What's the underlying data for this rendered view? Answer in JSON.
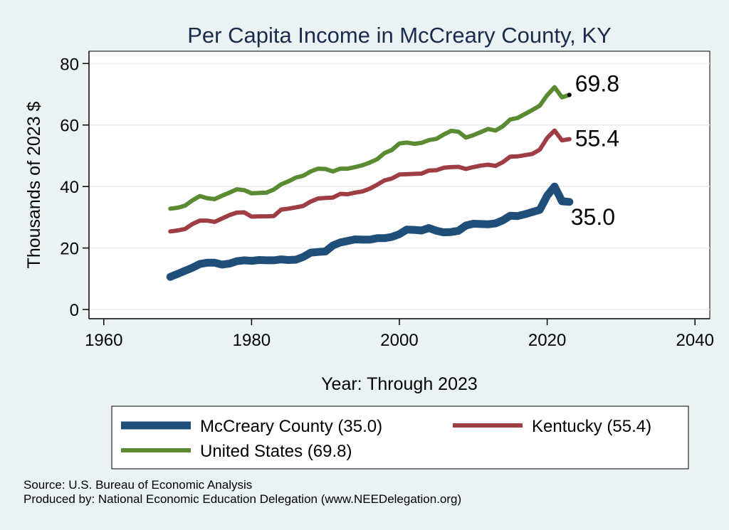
{
  "chart_data": {
    "type": "line",
    "title": "Per Capita Income in McCreary County, KY",
    "xlabel": "Year: Through 2023",
    "ylabel": "Thousands of 2023 $",
    "xlim": [
      1958,
      2042
    ],
    "ylim": [
      -3,
      84
    ],
    "xticks": [
      1960,
      1980,
      2000,
      2020,
      2040
    ],
    "yticks": [
      0,
      20,
      40,
      60,
      80
    ],
    "x": [
      1969,
      1970,
      1971,
      1972,
      1973,
      1974,
      1975,
      1976,
      1977,
      1978,
      1979,
      1980,
      1981,
      1982,
      1983,
      1984,
      1985,
      1986,
      1987,
      1988,
      1989,
      1990,
      1991,
      1992,
      1993,
      1994,
      1995,
      1996,
      1997,
      1998,
      1999,
      2000,
      2001,
      2002,
      2003,
      2004,
      2005,
      2006,
      2007,
      2008,
      2009,
      2010,
      2011,
      2012,
      2013,
      2014,
      2015,
      2016,
      2017,
      2018,
      2019,
      2020,
      2021,
      2022,
      2023
    ],
    "series": [
      {
        "name": "United States",
        "color": "#5a8a32",
        "values": [
          32.8,
          33.1,
          33.8,
          35.5,
          36.9,
          36.2,
          35.9,
          37.0,
          38.0,
          39.1,
          38.8,
          37.8,
          37.9,
          38.0,
          39.0,
          40.7,
          41.7,
          42.9,
          43.5,
          44.9,
          45.8,
          45.7,
          44.9,
          45.8,
          45.8,
          46.3,
          46.9,
          47.8,
          48.9,
          50.9,
          51.9,
          54.0,
          54.3,
          53.9,
          54.2,
          55.1,
          55.5,
          56.9,
          58.1,
          57.8,
          55.9,
          56.7,
          57.7,
          58.7,
          58.2,
          59.6,
          61.8,
          62.3,
          63.6,
          64.9,
          66.3,
          69.7,
          72.3,
          69.0,
          69.8
        ],
        "end_label": "69.8"
      },
      {
        "name": "Kentucky",
        "color": "#9e3d44",
        "values": [
          25.4,
          25.7,
          26.2,
          27.8,
          28.9,
          28.9,
          28.5,
          29.6,
          30.7,
          31.5,
          31.6,
          30.2,
          30.3,
          30.3,
          30.4,
          32.5,
          32.8,
          33.2,
          33.7,
          35.1,
          36.1,
          36.3,
          36.4,
          37.6,
          37.5,
          38.0,
          38.4,
          39.3,
          40.6,
          42.0,
          42.6,
          43.9,
          44.0,
          44.1,
          44.2,
          45.2,
          45.3,
          46.1,
          46.3,
          46.4,
          45.7,
          46.3,
          46.8,
          47.1,
          46.7,
          47.9,
          49.7,
          49.8,
          50.2,
          50.6,
          52.0,
          55.8,
          58.2,
          55.0,
          55.4
        ],
        "end_label": "55.4"
      },
      {
        "name": "McCreary County",
        "color": "#1f4e79",
        "values": [
          10.6,
          11.6,
          12.6,
          13.6,
          14.8,
          15.2,
          15.2,
          14.6,
          14.9,
          15.7,
          16.0,
          15.8,
          16.1,
          16.0,
          16.0,
          16.3,
          16.1,
          16.2,
          17.1,
          18.5,
          18.7,
          18.9,
          20.8,
          21.8,
          22.3,
          22.8,
          22.7,
          22.7,
          23.2,
          23.2,
          23.6,
          24.5,
          26.0,
          25.9,
          25.7,
          26.5,
          25.6,
          25.1,
          25.2,
          25.6,
          27.3,
          27.9,
          27.8,
          27.7,
          28.0,
          29.0,
          30.5,
          30.4,
          31.0,
          31.7,
          32.4,
          37.0,
          40.0,
          35.2,
          35.0
        ],
        "end_label": "35.0"
      }
    ],
    "legend": [
      {
        "label": "McCreary County (35.0)",
        "color": "#1f4e79"
      },
      {
        "label": "Kentucky (55.4)",
        "color": "#9e3d44"
      },
      {
        "label": "United States (69.8)",
        "color": "#5a8a32"
      }
    ],
    "legend_position": "bottom"
  },
  "footer": {
    "source": "Source: U.S. Bureau of Economic Analysis",
    "produced_by": "Produced by: National Economic Education Delegation (www.NEEDelegation.org)"
  }
}
